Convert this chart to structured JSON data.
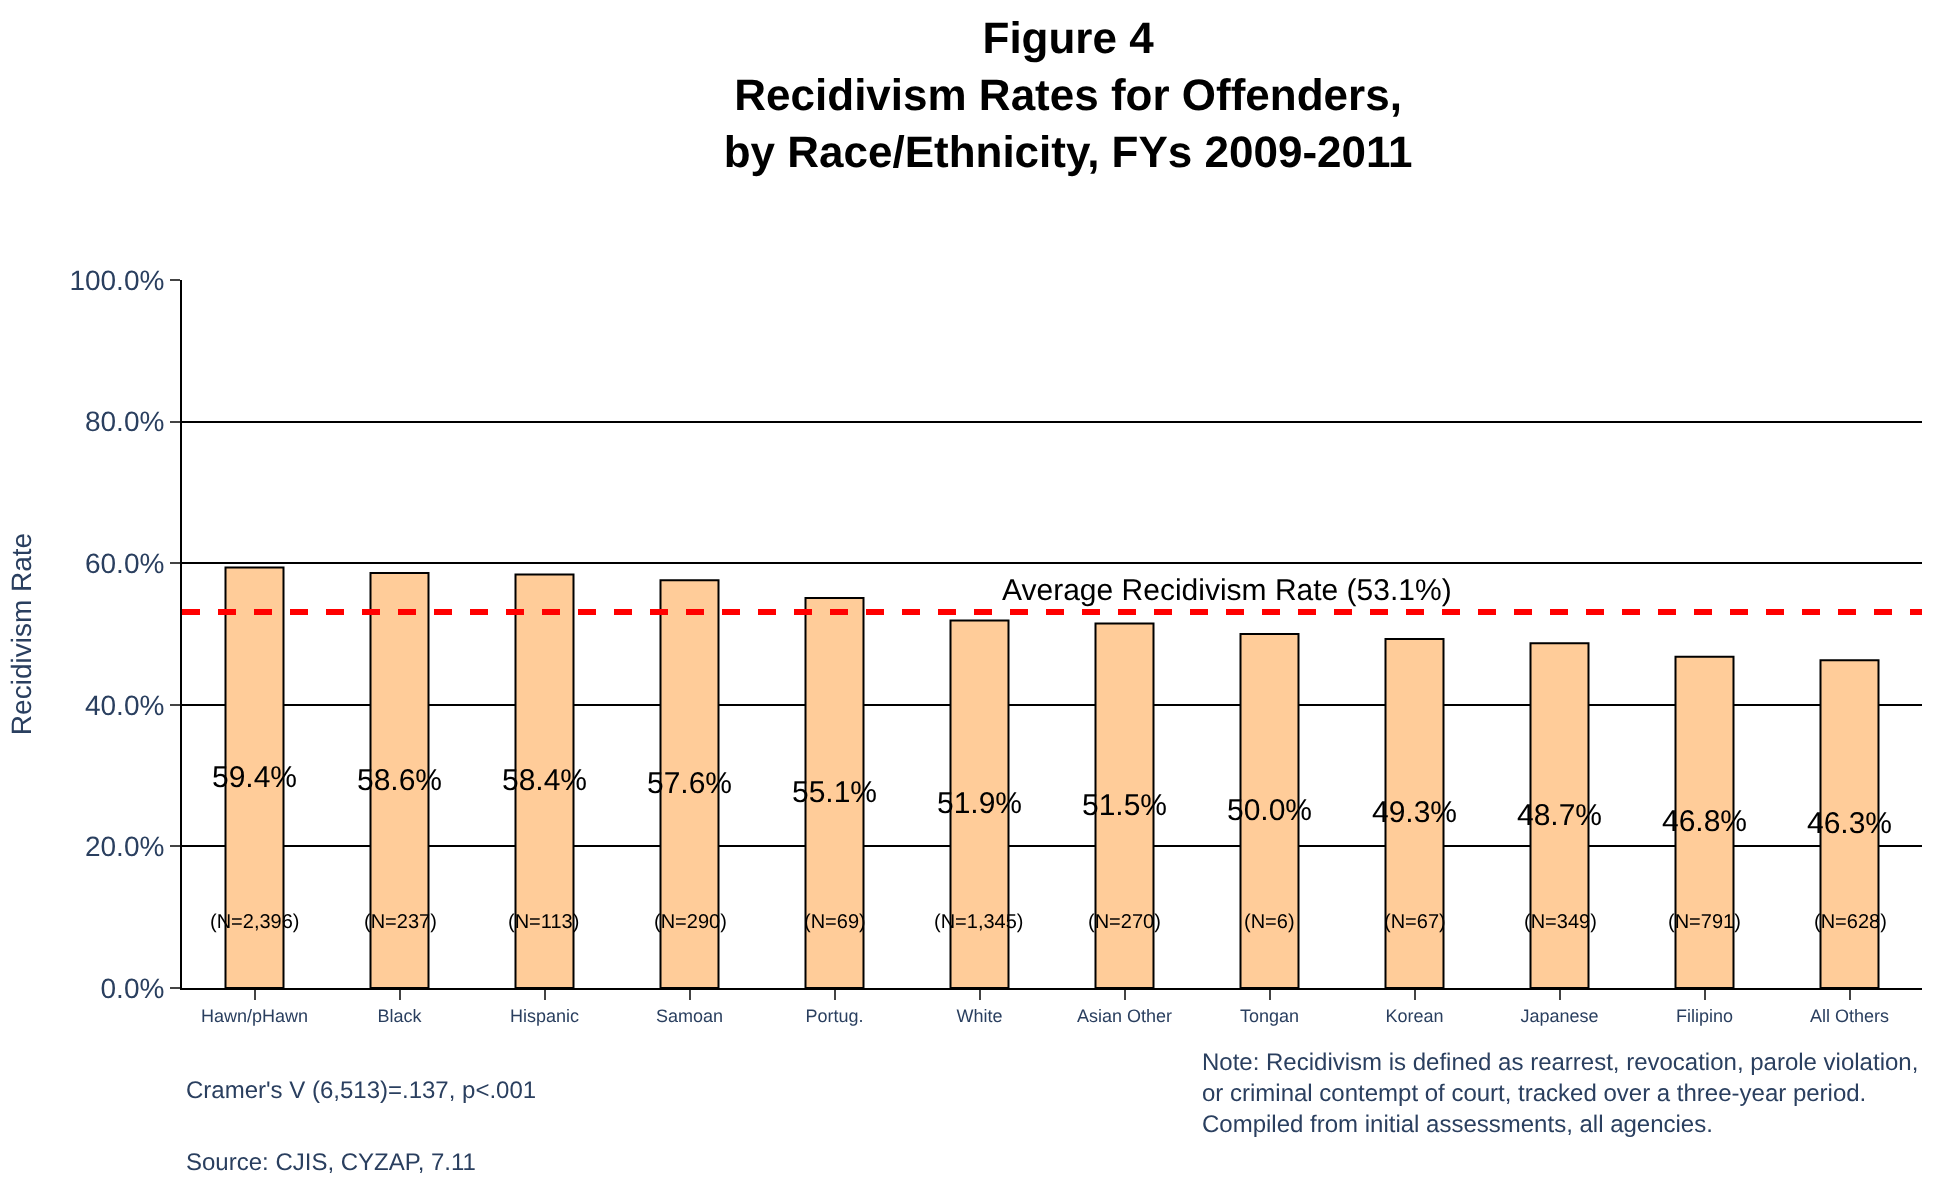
{
  "chart_data": {
    "type": "bar",
    "title": "Figure 4\nRecidivism Rates for Offenders,\nby Race/Ethnicity, FYs 2009-2011",
    "ylabel": "Recidivism Rate",
    "categories": [
      "Hawn/pHawn",
      "Black",
      "Hispanic",
      "Samoan",
      "Portug.",
      "White",
      "Asian Other",
      "Tongan",
      "Korean",
      "Japanese",
      "Filipino",
      "All Others"
    ],
    "values": [
      59.4,
      58.6,
      58.4,
      57.6,
      55.1,
      51.9,
      51.5,
      50.0,
      49.3,
      48.7,
      46.8,
      46.3
    ],
    "value_labels": [
      "59.4%",
      "58.6%",
      "58.4%",
      "57.6%",
      "55.1%",
      "51.9%",
      "51.5%",
      "50.0%",
      "49.3%",
      "48.7%",
      "46.8%",
      "46.3%"
    ],
    "color": "#ffcc99",
    "ylim": [
      0,
      100
    ],
    "yticks": [
      {
        "value": 0,
        "label": "0.0%"
      },
      {
        "value": 20,
        "label": "20.0%"
      },
      {
        "value": 40,
        "label": "40.0%"
      },
      {
        "value": 60,
        "label": "60.0%"
      },
      {
        "value": 80,
        "label": "80.0%"
      },
      {
        "value": 100,
        "label": "100.0%"
      }
    ],
    "grid": "y",
    "legend": false,
    "ref_lines": [
      {
        "axis": "y",
        "value": 53.1,
        "label": "Average Recidivism Rate (53.1%)",
        "color": "#ff0000",
        "line_style": "dashed"
      }
    ],
    "annotations": [
      "(N=2,396)",
      "(N=237)",
      "(N=113)",
      "(N=290)",
      "(N=69)",
      "(N=1,345)",
      "(N=270)",
      "(N=6)",
      "(N=67)",
      "(N=349)",
      "(N=791)",
      "(N=628)",
      "Cramer's V (6,513)=.137, p<.001",
      "Source: CJIS, CYZAP, 7.11",
      "Note: Recidivism is defined as rearrest, revocation, parole violation, or criminal contempt of court, tracked over a three-year period. Compiled from initial assessments, all agencies."
    ]
  }
}
